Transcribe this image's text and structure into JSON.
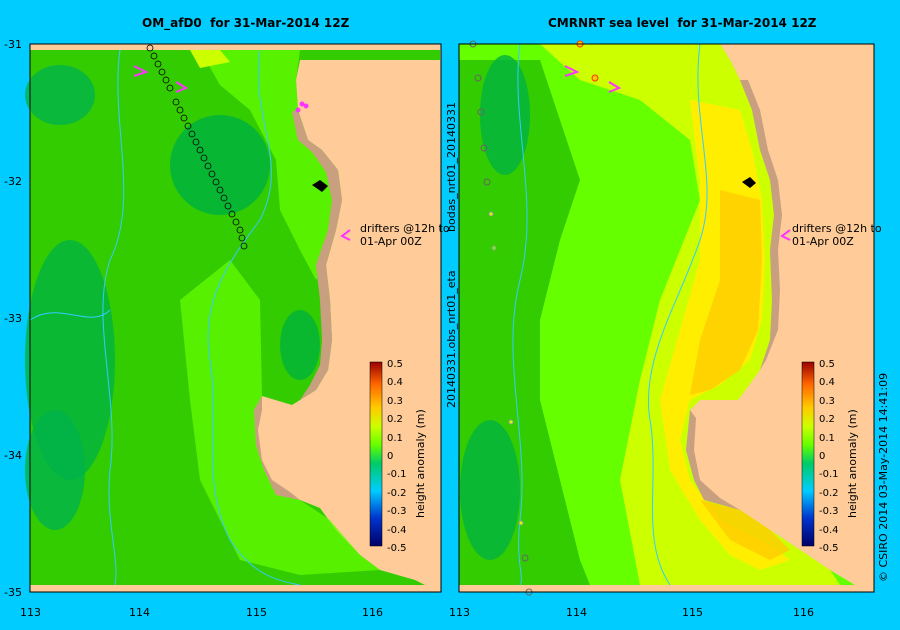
{
  "left_panel": {
    "title": "OM_afD0  for 31-Mar-2014 12Z"
  },
  "right_panel": {
    "title": "CMRNRT sea level  for 31-Mar-2014 12Z"
  },
  "y_ticks": [
    "-31",
    "-32",
    "-33",
    "-34",
    "-35"
  ],
  "x_ticks": [
    "113",
    "114",
    "115",
    "116"
  ],
  "drifter_note": {
    "line1": "drifters @12h to",
    "line2": "01-Apr 00Z"
  },
  "colorbar": {
    "ticks": [
      "0.5",
      "0.4",
      "0.3",
      "0.2",
      "0.1",
      "0",
      "-0.1",
      "-0.2",
      "-0.3",
      "-0.4",
      "-0.5"
    ],
    "label": "height anomaly (m)"
  },
  "side_labels": {
    "upper": "bodas_nrt01_20140331",
    "lower": "20140331.obs_nrt01_eta"
  },
  "credit": "© CSIRO 2014   03-May-2014 14:41:09",
  "colors": {
    "background": "#00ccff",
    "land": "#ffcc99",
    "shelf": "#c8a080",
    "drifter": "#ff33ff"
  }
}
